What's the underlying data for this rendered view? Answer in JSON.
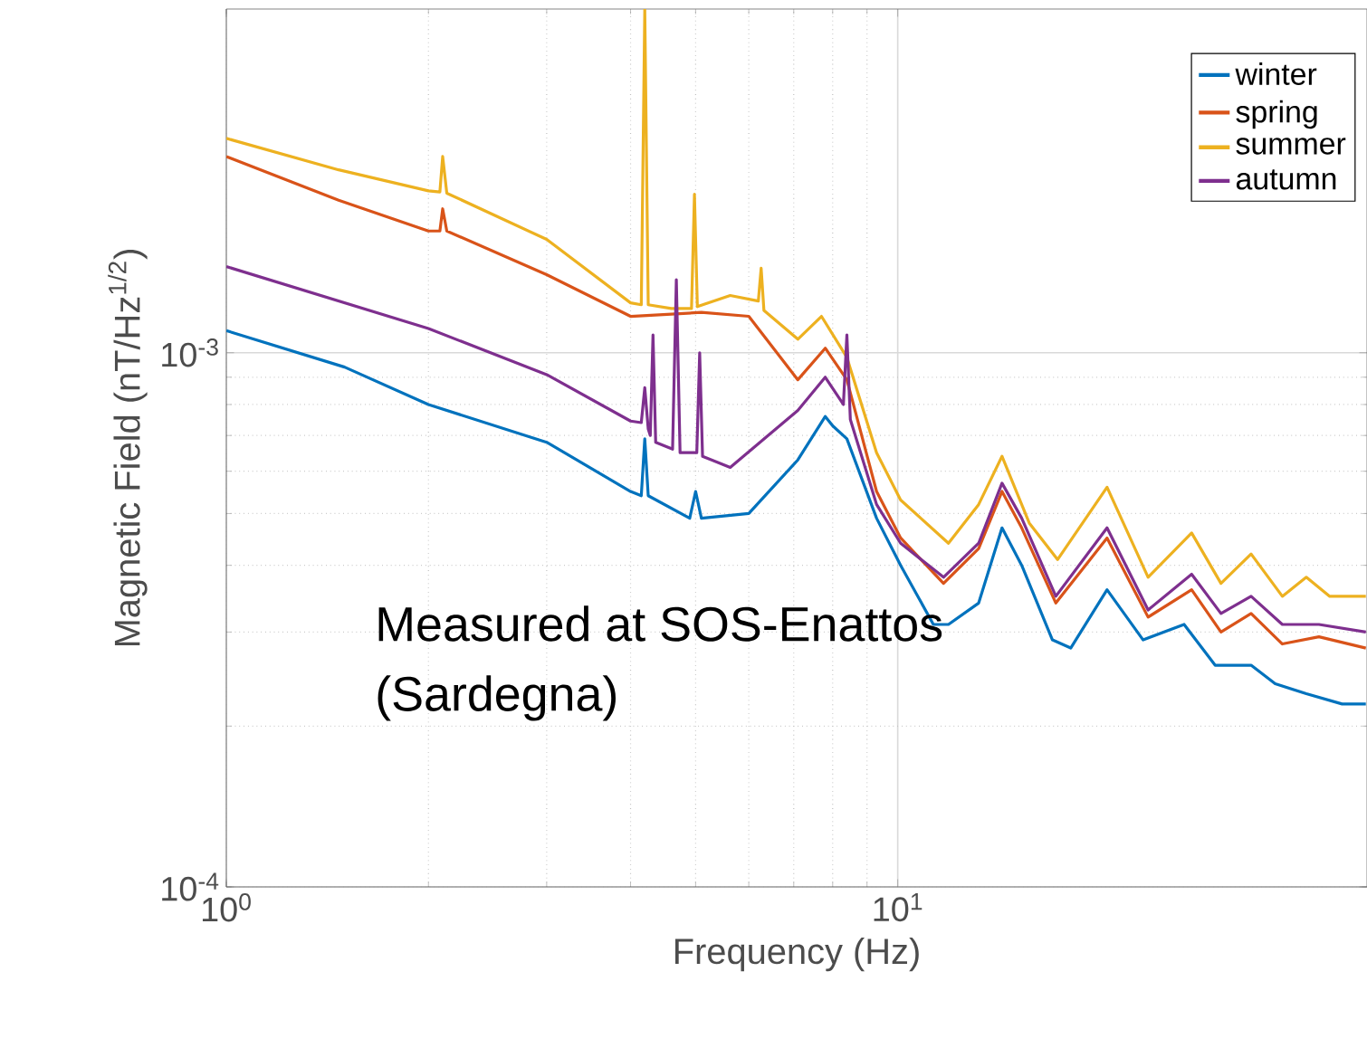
{
  "chart_data": {
    "type": "line",
    "xlabel": "Frequency (Hz)",
    "ylabel": "Magnetic Field (nT/Hz$^{1/2}$)",
    "log": "xy",
    "grid": true,
    "legend": "top right",
    "xlim": [
      1,
      50
    ],
    "ylim": [
      0.0001,
      0.0044
    ],
    "xticks": [
      {
        "value": 1,
        "label": "10$^{0}$"
      },
      {
        "value": 10,
        "label": "10$^{1}$"
      }
    ],
    "yticks": [
      {
        "value": 0.0001,
        "label": "10$^{-4}$"
      },
      {
        "value": 0.001,
        "label": "10$^{-3}$"
      }
    ],
    "annotations": [
      "Measured at SOS-Enattos",
      "(Sardegna)"
    ],
    "series": [
      {
        "name": "winter",
        "color": "#0072bd",
        "x": [
          1,
          1.5,
          2,
          3,
          4,
          4.15,
          4.2,
          4.25,
          4.9,
          5.0,
          5.1,
          6,
          7.1,
          7.8,
          8,
          8.4,
          9.3,
          10.1,
          11.3,
          11.9,
          13.2,
          14.3,
          15.3,
          17,
          18.1,
          20.5,
          23.2,
          26.7,
          29.7,
          33.6,
          36.5,
          40.6,
          45.9,
          49.8
        ],
        "values": [
          0.0011,
          0.00094,
          0.0008,
          0.00068,
          0.00055,
          0.00054,
          0.00069,
          0.00054,
          0.00049,
          0.00055,
          0.00049,
          0.0005,
          0.00063,
          0.00076,
          0.00073,
          0.00069,
          0.00049,
          0.0004,
          0.00031,
          0.00031,
          0.00034,
          0.00047,
          0.0004,
          0.00029,
          0.00028,
          0.00036,
          0.00029,
          0.00031,
          0.00026,
          0.00026,
          0.00024,
          0.00023,
          0.00022,
          0.00022
        ]
      },
      {
        "name": "spring",
        "color": "#d95319",
        "x": [
          1,
          1.47,
          2,
          2.08,
          2.1,
          2.13,
          3,
          4,
          5.1,
          6,
          7.1,
          7.8,
          8.4,
          9.3,
          10.1,
          11.7,
          13.2,
          14.3,
          15.3,
          17.2,
          20.5,
          23.6,
          27.4,
          30.3,
          33.6,
          37.4,
          42.4,
          49.8
        ],
        "values": [
          0.00233,
          0.00193,
          0.00169,
          0.00169,
          0.00186,
          0.00169,
          0.0014,
          0.00117,
          0.00119,
          0.00117,
          0.00089,
          0.00102,
          0.00089,
          0.00055,
          0.00045,
          0.00037,
          0.00043,
          0.00055,
          0.00047,
          0.00034,
          0.00045,
          0.00032,
          0.00036,
          0.0003,
          0.000325,
          0.000285,
          0.000294,
          0.00028
        ]
      },
      {
        "name": "summer",
        "color": "#edb120",
        "x": [
          1,
          1.47,
          2,
          2.08,
          2.1,
          2.13,
          3,
          4,
          4.15,
          4.2,
          4.25,
          4.6,
          4.93,
          4.98,
          5.03,
          5.63,
          6.2,
          6.26,
          6.32,
          7.1,
          7.7,
          8.4,
          9.3,
          10.1,
          11.9,
          13.2,
          14.3,
          15.7,
          17.3,
          20.5,
          23.6,
          27.4,
          30.3,
          33.6,
          37.4,
          40.6,
          44,
          49.8
        ],
        "values": [
          0.00252,
          0.0022,
          0.00201,
          0.002,
          0.00233,
          0.00199,
          0.00163,
          0.00124,
          0.00123,
          0.0044,
          0.00123,
          0.00121,
          0.00121,
          0.00198,
          0.00122,
          0.00128,
          0.00125,
          0.00144,
          0.0012,
          0.00106,
          0.00117,
          0.00098,
          0.00065,
          0.00053,
          0.00044,
          0.00052,
          0.00064,
          0.00048,
          0.00041,
          0.00056,
          0.00038,
          0.00046,
          0.00037,
          0.00042,
          0.00035,
          0.00038,
          0.00035,
          0.00035
        ]
      },
      {
        "name": "autumn",
        "color": "#7e2f8e",
        "x": [
          1,
          2,
          3,
          4,
          4.15,
          4.2,
          4.25,
          4.28,
          4.32,
          4.36,
          4.62,
          4.68,
          4.74,
          5.02,
          5.07,
          5.12,
          5.63,
          7.1,
          7.8,
          8.3,
          8.4,
          8.5,
          9.3,
          10.1,
          11.7,
          13.2,
          14.3,
          15.3,
          17.2,
          20.5,
          23.6,
          27.4,
          30.3,
          33.6,
          37.4,
          42.4,
          49.8
        ],
        "values": [
          0.00145,
          0.00111,
          0.00091,
          0.000745,
          0.00074,
          0.00086,
          0.00072,
          0.0007,
          0.00108,
          0.00068,
          0.00066,
          0.00137,
          0.00065,
          0.00065,
          0.001,
          0.00064,
          0.00061,
          0.00078,
          0.0009,
          0.0008,
          0.00108,
          0.00075,
          0.00052,
          0.00044,
          0.00038,
          0.00044,
          0.00057,
          0.00049,
          0.00035,
          0.00047,
          0.00033,
          0.000385,
          0.000325,
          0.00035,
          0.00031,
          0.00031,
          0.0003
        ]
      }
    ]
  }
}
